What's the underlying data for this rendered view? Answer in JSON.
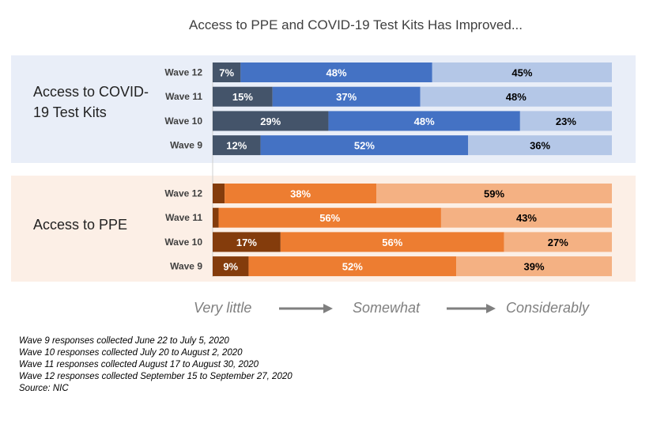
{
  "title": "Access to PPE and COVID-19 Test Kits Has Improved...",
  "colors": {
    "kits": [
      "#44546a",
      "#4472c4",
      "#b4c7e7"
    ],
    "ppe": [
      "#843c0c",
      "#ed7d31",
      "#f4b183"
    ],
    "panel_kits_bg": "#e9eef8",
    "panel_ppe_bg": "#fcefe6"
  },
  "legend": {
    "very_little": "Very little",
    "somewhat": "Somewhat",
    "considerably": "Considerably",
    "arrow_icon": "right-arrow-icon"
  },
  "notes": [
    "Wave 9 responses collected June 22 to July 5, 2020",
    "Wave 10 responses collected July 20 to August 2, 2020",
    "Wave 11 responses collected August 17 to August 30, 2020",
    "Wave 12 responses collected September 15 to September 27, 2020",
    "Source: NIC"
  ],
  "chart_data": {
    "type": "bar",
    "stacked": true,
    "orientation": "horizontal",
    "title": "Access to PPE and COVID-19 Test Kits Has Improved...",
    "series_labels": [
      "Very little",
      "Somewhat",
      "Considerably"
    ],
    "groups": [
      {
        "name": "Access to COVID-19 Test Kits",
        "rows": [
          {
            "label": "Wave 12",
            "values": [
              7,
              48,
              45
            ],
            "labels": [
              "7%",
              "48%",
              "45%"
            ]
          },
          {
            "label": "Wave 11",
            "values": [
              15,
              37,
              48
            ],
            "labels": [
              "15%",
              "37%",
              "48%"
            ]
          },
          {
            "label": "Wave 10",
            "values": [
              29,
              48,
              23
            ],
            "labels": [
              "29%",
              "48%",
              "23%"
            ]
          },
          {
            "label": "Wave 9",
            "values": [
              12,
              52,
              36
            ],
            "labels": [
              "12%",
              "52%",
              "36%"
            ]
          }
        ]
      },
      {
        "name": "Access to PPE",
        "rows": [
          {
            "label": "Wave 12",
            "values": [
              3,
              38,
              59
            ],
            "labels": [
              "",
              "38%",
              "59%"
            ]
          },
          {
            "label": "Wave 11",
            "values": [
              1.5,
              56,
              43
            ],
            "labels": [
              "",
              "56%",
              "43%"
            ]
          },
          {
            "label": "Wave 10",
            "values": [
              17,
              56,
              27
            ],
            "labels": [
              "17%",
              "56%",
              "27%"
            ]
          },
          {
            "label": "Wave 9",
            "values": [
              9,
              52,
              39
            ],
            "labels": [
              "9%",
              "52%",
              "39%"
            ]
          }
        ]
      }
    ]
  }
}
